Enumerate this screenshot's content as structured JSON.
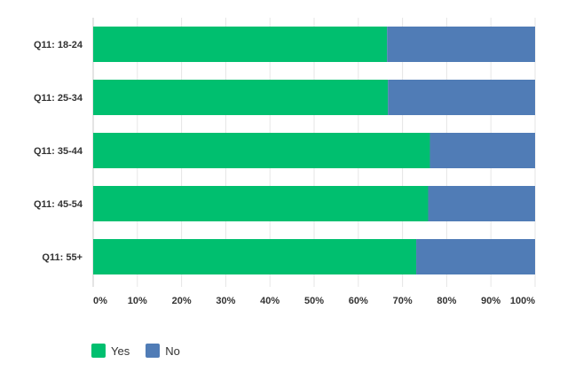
{
  "chart_data": {
    "type": "bar",
    "orientation": "horizontal",
    "stacked": true,
    "categories": [
      "Q11: 18-24",
      "Q11: 25-34",
      "Q11: 35-44",
      "Q11: 45-54",
      "Q11: 55+"
    ],
    "series": [
      {
        "name": "Yes",
        "color": "#00BF6F",
        "values": [
          66.5,
          66.7,
          76.2,
          75.8,
          73.1
        ]
      },
      {
        "name": "No",
        "color": "#507CB6",
        "values": [
          33.5,
          33.3,
          23.8,
          24.2,
          26.9
        ]
      }
    ],
    "xlim": [
      0,
      100
    ],
    "xticks": [
      "0%",
      "10%",
      "20%",
      "30%",
      "40%",
      "50%",
      "60%",
      "70%",
      "80%",
      "90%",
      "100%"
    ],
    "grid": true,
    "legend_position": "bottom-left"
  }
}
